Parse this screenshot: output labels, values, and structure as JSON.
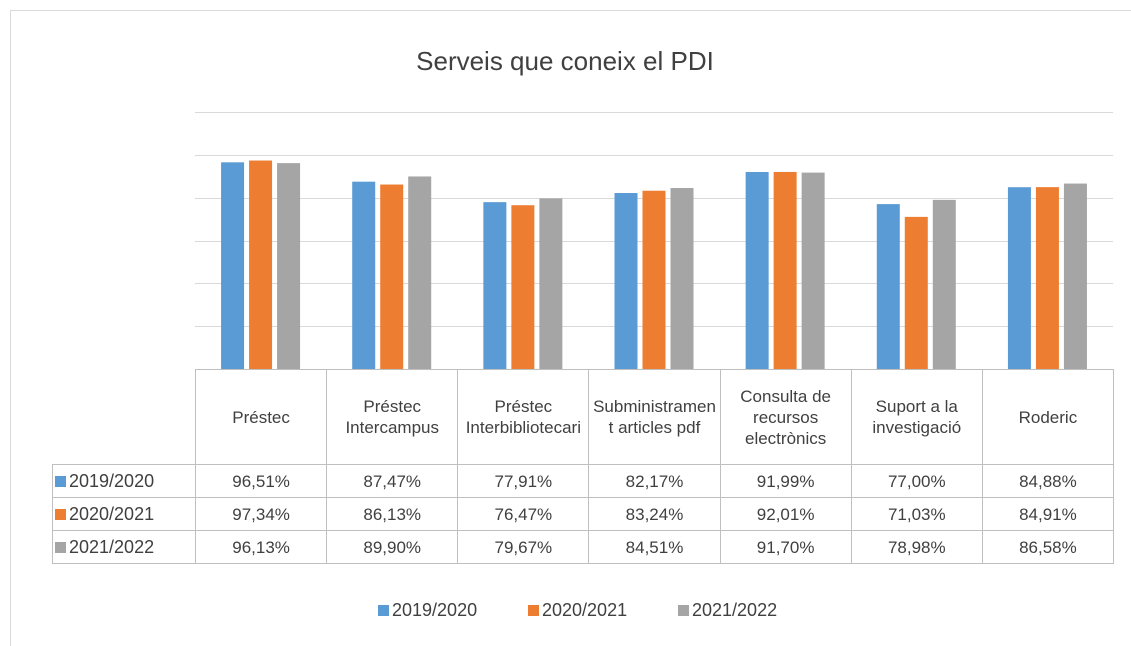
{
  "chart_data": {
    "type": "bar",
    "title": "Serveis que coneix el PDI",
    "categories": [
      "Préstec",
      "Préstec Intercampus",
      "Préstec Interbibliotecari",
      "Subministrament articles pdf",
      "Consulta de recursos electrònics",
      "Suport a la investigació",
      "Roderic"
    ],
    "series": [
      {
        "name": "2019/2020",
        "color": "#5b9bd5",
        "values": [
          96.51,
          87.47,
          77.91,
          82.17,
          91.99,
          77.0,
          84.88
        ],
        "value_labels": [
          "96,51%",
          "87,47%",
          "77,91%",
          "82,17%",
          "91,99%",
          "77,00%",
          "84,88%"
        ]
      },
      {
        "name": "2020/2021",
        "color": "#ed7d31",
        "values": [
          97.34,
          86.13,
          76.47,
          83.24,
          92.01,
          71.03,
          84.91
        ],
        "value_labels": [
          "97,34%",
          "86,13%",
          "76,47%",
          "83,24%",
          "92,01%",
          "71,03%",
          "84,91%"
        ]
      },
      {
        "name": "2021/2022",
        "color": "#a5a5a5",
        "values": [
          96.13,
          89.9,
          79.67,
          84.51,
          91.7,
          78.98,
          86.58
        ],
        "value_labels": [
          "96,13%",
          "89,90%",
          "79,67%",
          "84,51%",
          "91,70%",
          "78,98%",
          "86,58%"
        ]
      }
    ],
    "ylim": [
      0,
      120
    ],
    "yticks": [
      0,
      20,
      40,
      60,
      80,
      100,
      120
    ],
    "grid": true,
    "legend": "bottom"
  }
}
